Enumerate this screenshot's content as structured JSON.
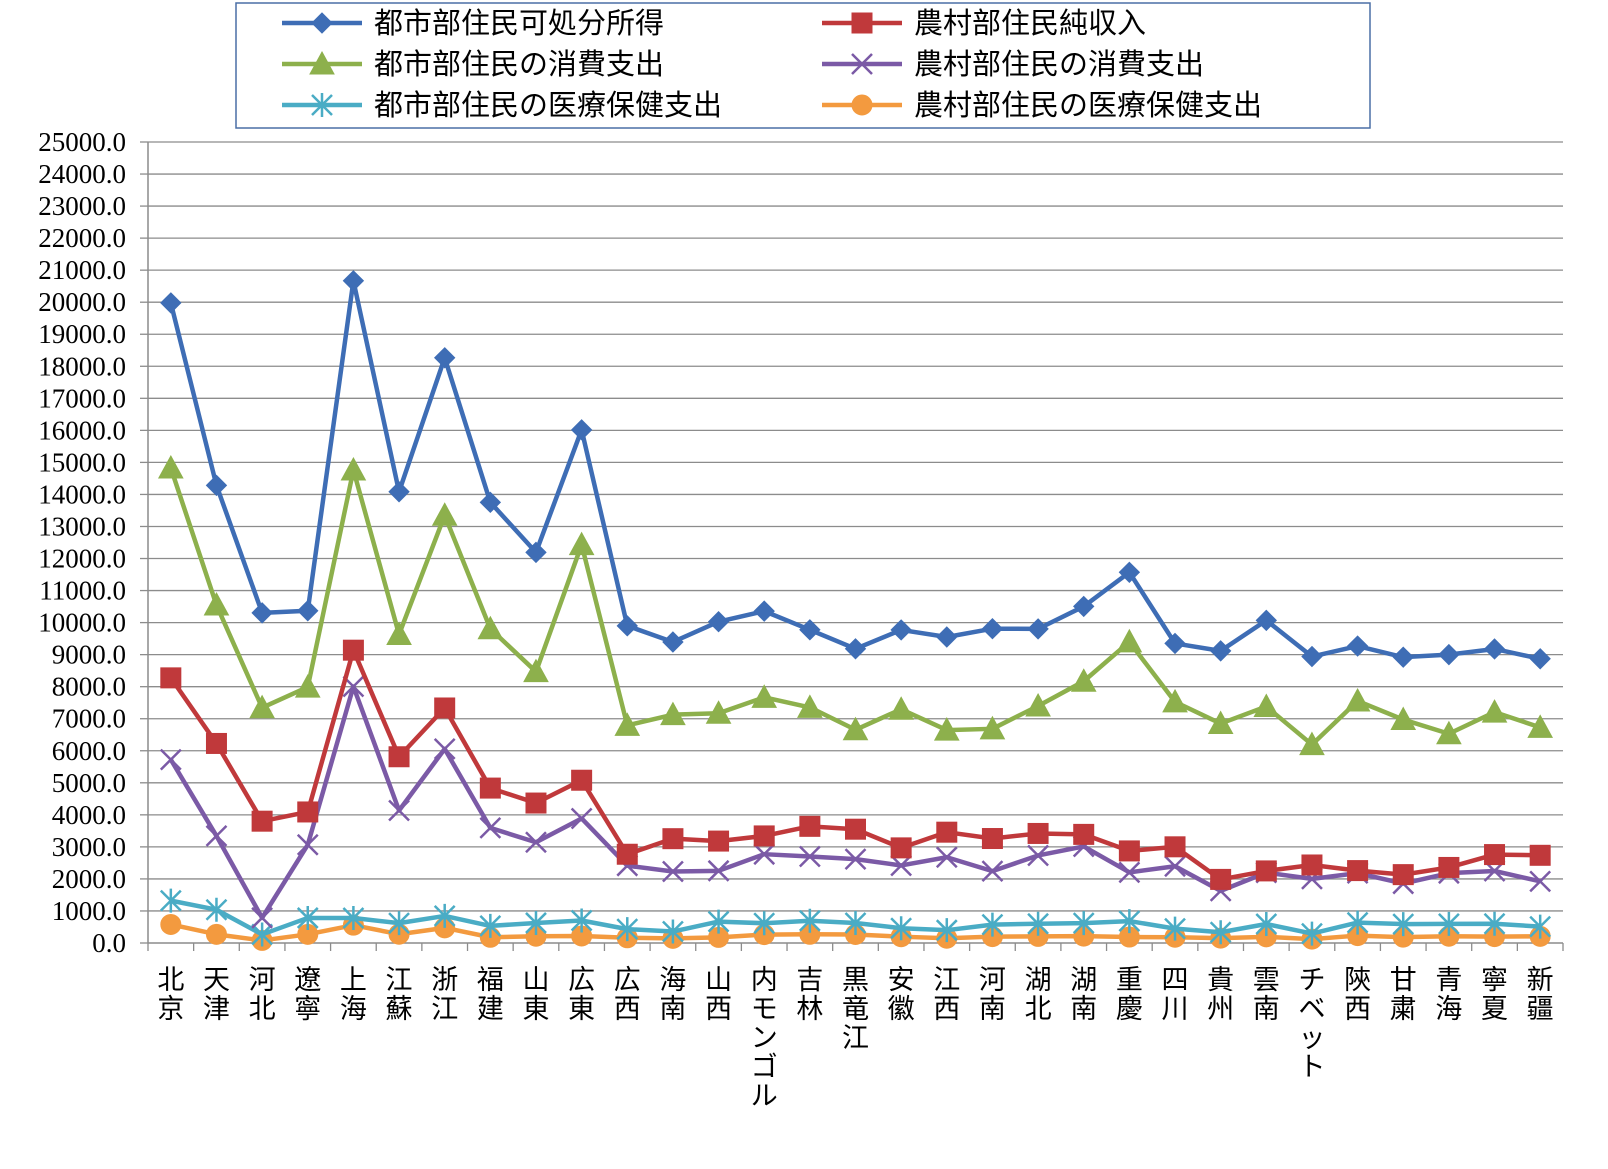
{
  "chart_data": {
    "type": "line",
    "title": "",
    "xlabel": "",
    "ylabel": "",
    "ylim": [
      0,
      25000
    ],
    "ytick_step": 1000,
    "grid": true,
    "legend_position": "top",
    "categories": [
      "北京",
      "天津",
      "河北",
      "遼寧",
      "上海",
      "江蘇",
      "浙江",
      "福建",
      "山東",
      "広東",
      "広西",
      "海南",
      "山西",
      "内モンゴル",
      "吉林",
      "黒竜江",
      "安徽",
      "江西",
      "河南",
      "湖北",
      "湖南",
      "重慶",
      "四川",
      "貴州",
      "雲南",
      "チベット",
      "陝西",
      "甘粛",
      "青海",
      "寧夏",
      "新疆"
    ],
    "series": [
      {
        "name": "都市部住民可処分所得",
        "color": "#3E6DB5",
        "marker": "diamond",
        "values": [
          19978,
          14283,
          10304,
          10370,
          20668,
          14084,
          18265,
          13753,
          12192,
          16016,
          9899,
          9395,
          10028,
          10358,
          9775,
          9182,
          9771,
          9551,
          9810,
          9803,
          10505,
          11570,
          9350,
          9117,
          10070,
          8941,
          9268,
          8921,
          9000,
          9177,
          8871
        ]
      },
      {
        "name": "農村部住民純収入",
        "color": "#C0393B",
        "marker": "square",
        "values": [
          8275,
          6228,
          3802,
          4090,
          9139,
          5813,
          7335,
          4835,
          4368,
          5080,
          2770,
          3256,
          3181,
          3342,
          3641,
          3552,
          2969,
          3459,
          3261,
          3419,
          3390,
          2874,
          3002,
          1985,
          2250,
          2435,
          2260,
          2134,
          2358,
          2760,
          2737
        ]
      },
      {
        "name": "都市部住民の消費支出",
        "color": "#8DB04C",
        "marker": "triangle",
        "values": [
          14825,
          10548,
          7343,
          7987,
          14762,
          9629,
          13349,
          9808,
          8468,
          12432,
          6792,
          7127,
          7171,
          7667,
          7353,
          6655,
          7295,
          6645,
          6685,
          7397,
          8169,
          9399,
          7525,
          6849,
          7380,
          6193,
          7553,
          6974,
          6530,
          7206,
          6730
        ]
      },
      {
        "name": "農村部住民の消費支出",
        "color": "#7B5AA6",
        "marker": "x",
        "values": [
          5724,
          3342,
          786,
          3066,
          8006,
          4135,
          6058,
          3592,
          3144,
          3886,
          2413,
          2232,
          2253,
          2772,
          2701,
          2618,
          2420,
          2676,
          2244,
          2732,
          3013,
          2205,
          2395,
          1627,
          2196,
          2002,
          2181,
          1855,
          2179,
          2247,
          1924
        ]
      },
      {
        "name": "都市部住民の医療保健支出",
        "color": "#4AACC5",
        "marker": "asterisk",
        "values": [
          1322,
          1039,
          267,
          782,
          781,
          620,
          845,
          534,
          626,
          702,
          433,
          358,
          668,
          617,
          695,
          625,
          462,
          400,
          573,
          602,
          619,
          684,
          449,
          336,
          593,
          294,
          636,
          590,
          598,
          601,
          511
        ]
      },
      {
        "name": "農村部住民の医療保健支出",
        "color": "#F39A3F",
        "marker": "circle",
        "values": [
          578,
          270,
          80,
          271,
          556,
          274,
          473,
          179,
          212,
          220,
          162,
          144,
          174,
          262,
          272,
          265,
          197,
          148,
          200,
          206,
          216,
          186,
          180,
          152,
          193,
          122,
          232,
          183,
          212,
          200,
          208
        ]
      }
    ]
  }
}
